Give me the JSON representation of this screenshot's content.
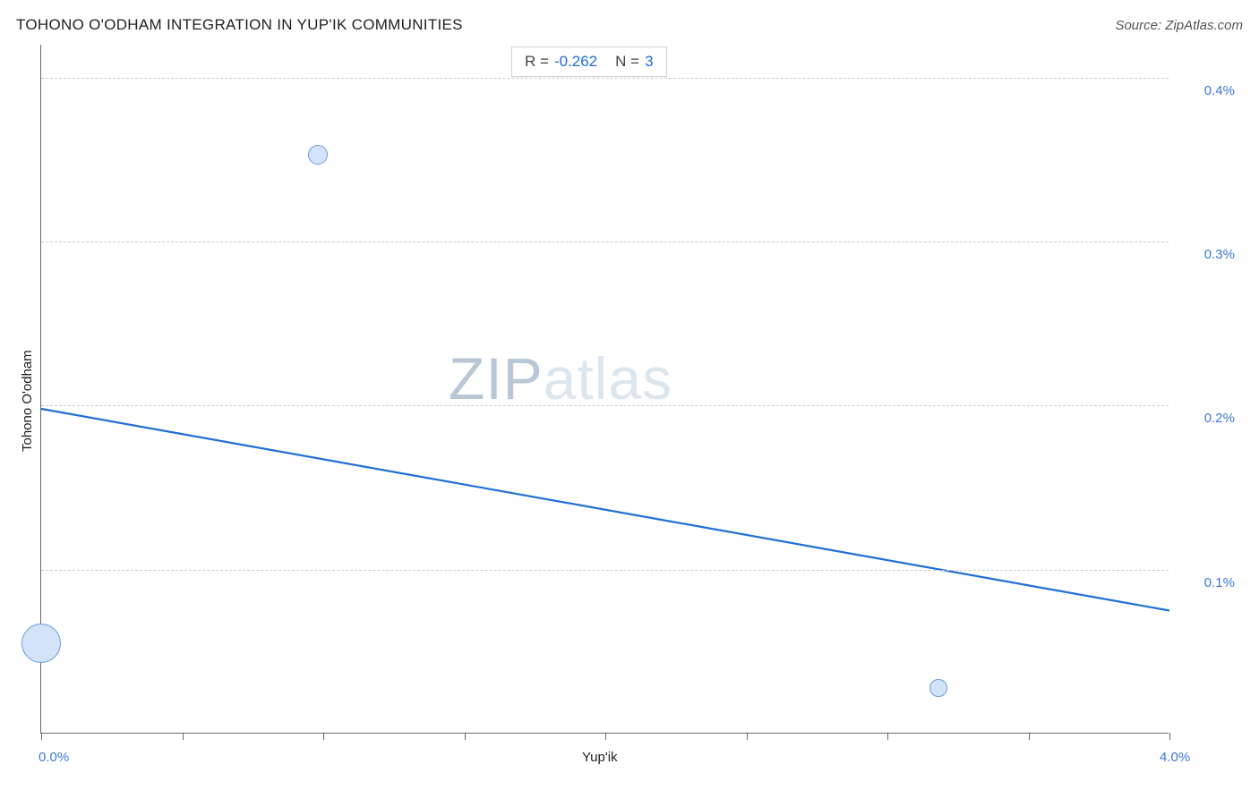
{
  "header": {
    "title": "TOHONO O'ODHAM INTEGRATION IN YUP'IK COMMUNITIES",
    "source": "Source: ZipAtlas.com"
  },
  "stats": {
    "r_label": "R =",
    "r_value": "-0.262",
    "n_label": "N =",
    "n_value": "3"
  },
  "chart": {
    "type": "scatter",
    "x_axis": {
      "title": "Yup'ik",
      "min": 0.0,
      "max": 4.0,
      "start_label": "0.0%",
      "end_label": "4.0%",
      "tick_step": 0.5
    },
    "y_axis": {
      "title": "Tohono O'odham",
      "min": 0.0,
      "max": 0.42,
      "ticks": [
        0.1,
        0.2,
        0.3,
        0.4
      ],
      "tick_labels": [
        "0.1%",
        "0.2%",
        "0.3%",
        "0.4%"
      ]
    },
    "gridline_color": "#cccccc",
    "axis_color": "#666666",
    "label_color": "#3b78d8",
    "points": [
      {
        "x": 0.0,
        "y": 0.055,
        "r": 22
      },
      {
        "x": 0.98,
        "y": 0.353,
        "r": 11
      },
      {
        "x": 3.18,
        "y": 0.028,
        "r": 10
      }
    ],
    "point_fill": "#d2e3fa",
    "point_stroke": "#6b9bd8",
    "trend": {
      "y_at_xmin": 0.198,
      "y_at_xmax": 0.075,
      "color": "#1e6fd8",
      "width": 2.2
    },
    "watermark": {
      "text_zip": "ZIP",
      "text_atlas": "atlas"
    }
  }
}
